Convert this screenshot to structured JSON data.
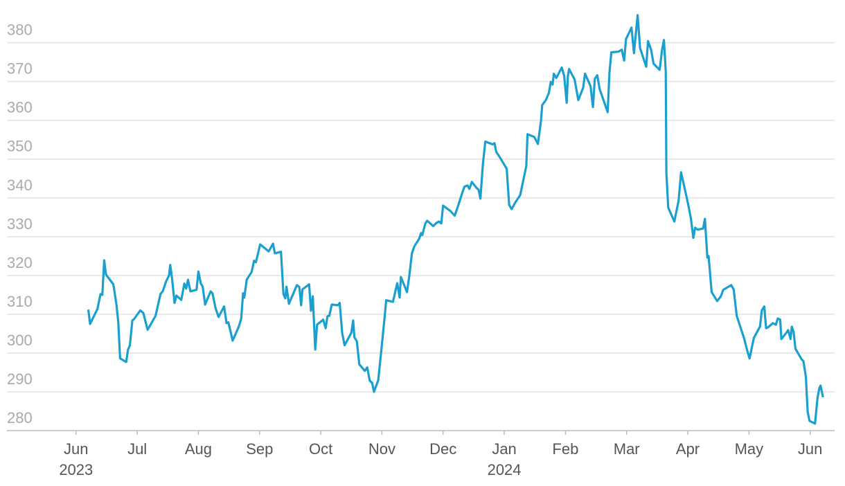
{
  "chart_data": {
    "type": "line",
    "x": [
      0.2,
      0.23,
      0.35,
      0.4,
      0.43,
      0.46,
      0.49,
      0.61,
      0.66,
      0.69,
      0.72,
      0.82,
      0.85,
      0.88,
      0.92,
      0.95,
      1.05,
      1.1,
      1.17,
      1.3,
      1.38,
      1.42,
      1.47,
      1.52,
      1.54,
      1.57,
      1.61,
      1.64,
      1.72,
      1.77,
      1.8,
      1.83,
      1.87,
      1.97,
      2.0,
      2.04,
      2.07,
      2.11,
      2.2,
      2.23,
      2.28,
      2.33,
      2.42,
      2.46,
      2.49,
      2.56,
      2.66,
      2.7,
      2.73,
      2.75,
      2.79,
      2.87,
      2.91,
      2.94,
      3.01,
      3.15,
      3.22,
      3.25,
      3.35,
      3.39,
      3.42,
      3.44,
      3.48,
      3.61,
      3.65,
      3.68,
      3.7,
      3.81,
      3.84,
      3.87,
      3.91,
      3.94,
      4.04,
      4.08,
      4.11,
      4.14,
      4.18,
      4.28,
      4.31,
      4.35,
      4.39,
      4.5,
      4.53,
      4.55,
      4.59,
      4.63,
      4.72,
      4.76,
      4.8,
      4.84,
      4.87,
      4.94,
      4.99,
      5.04,
      5.07,
      5.18,
      5.25,
      5.29,
      5.31,
      5.41,
      5.45,
      5.49,
      5.53,
      5.61,
      5.64,
      5.66,
      5.71,
      5.74,
      5.84,
      5.88,
      5.93,
      5.97,
      6.0,
      6.12,
      6.19,
      6.24,
      6.32,
      6.35,
      6.4,
      6.43,
      6.47,
      6.55,
      6.58,
      6.61,
      6.65,
      6.69,
      6.81,
      6.84,
      6.87,
      6.93,
      7.04,
      7.08,
      7.12,
      7.18,
      7.26,
      7.36,
      7.38,
      7.49,
      7.55,
      7.6,
      7.62,
      7.68,
      7.73,
      7.76,
      7.79,
      7.81,
      7.85,
      7.94,
      7.98,
      8.02,
      8.04,
      8.06,
      8.15,
      8.21,
      8.29,
      8.32,
      8.41,
      8.45,
      8.48,
      8.52,
      8.56,
      8.69,
      8.72,
      8.75,
      8.87,
      8.92,
      8.96,
      8.99,
      9.08,
      9.12,
      9.18,
      9.22,
      9.32,
      9.35,
      9.4,
      9.44,
      9.54,
      9.58,
      9.61,
      9.64,
      9.65,
      9.68,
      9.78,
      9.85,
      9.89,
      10.0,
      10.05,
      10.09,
      10.12,
      10.16,
      10.25,
      10.28,
      10.32,
      10.34,
      10.39,
      10.48,
      10.54,
      10.58,
      10.71,
      10.75,
      10.8,
      10.92,
      10.97,
      11.01,
      11.08,
      11.18,
      11.21,
      11.25,
      11.28,
      11.31,
      11.39,
      11.44,
      11.47,
      11.51,
      11.53,
      11.61,
      11.64,
      11.68,
      11.7,
      11.73,
      11.76,
      11.86,
      11.89,
      11.93,
      11.96,
      11.99,
      12.08,
      12.12,
      12.15,
      12.17,
      12.21
    ],
    "series": [
      {
        "color": "#1a9fcf",
        "values": [
          311.2,
          307.5,
          311.4,
          315.2,
          315.0,
          323.9,
          320.2,
          317.7,
          312.5,
          308.0,
          298.6,
          297.7,
          300.9,
          302.0,
          308.4,
          308.8,
          311.0,
          310.3,
          306.0,
          309.6,
          315.2,
          316.0,
          318.4,
          320.0,
          322.7,
          319.1,
          312.9,
          314.8,
          313.7,
          317.9,
          316.6,
          318.9,
          315.9,
          316.3,
          321.0,
          317.9,
          317.1,
          312.5,
          315.9,
          315.4,
          311.6,
          309.3,
          312.0,
          307.7,
          307.9,
          303.2,
          306.8,
          308.9,
          315.4,
          314.3,
          318.9,
          320.9,
          323.8,
          323.4,
          328.0,
          326.2,
          328.2,
          325.7,
          326.1,
          315.2,
          314.1,
          317.1,
          312.7,
          317.5,
          317.0,
          312.3,
          316.4,
          317.7,
          310.9,
          314.6,
          300.9,
          307.3,
          308.6,
          306.4,
          309.5,
          309.6,
          312.5,
          312.3,
          312.9,
          305.2,
          302.0,
          305.2,
          308.4,
          304.1,
          303.0,
          297.1,
          295.4,
          296.3,
          292.9,
          292.3,
          290.0,
          293.0,
          300.7,
          308.6,
          313.6,
          313.2,
          318.0,
          314.3,
          319.6,
          315.7,
          320.2,
          325.7,
          327.5,
          329.5,
          330.9,
          330.4,
          333.4,
          334.1,
          332.7,
          333.4,
          333.9,
          333.4,
          338.0,
          336.6,
          335.4,
          337.7,
          341.6,
          342.9,
          343.2,
          342.3,
          344.1,
          342.5,
          342.1,
          339.8,
          348.6,
          354.5,
          353.8,
          354.1,
          351.8,
          350.4,
          347.5,
          338.2,
          337.1,
          338.8,
          340.7,
          348.2,
          356.4,
          355.7,
          353.9,
          359.8,
          363.9,
          365.2,
          367.1,
          369.9,
          369.2,
          372.0,
          370.9,
          373.6,
          371.4,
          364.5,
          371.4,
          373.2,
          370.5,
          365.2,
          368.4,
          372.0,
          368.8,
          363.4,
          370.7,
          371.6,
          368.0,
          362.1,
          372.3,
          377.5,
          377.7,
          378.2,
          375.4,
          380.9,
          383.9,
          377.3,
          387.1,
          378.6,
          373.8,
          380.4,
          378.2,
          374.6,
          373.0,
          378.2,
          380.7,
          372.5,
          346.4,
          337.5,
          333.9,
          339.3,
          346.6,
          338.8,
          334.8,
          329.7,
          332.3,
          331.8,
          332.1,
          334.6,
          324.6,
          325.0,
          315.7,
          313.4,
          314.6,
          316.3,
          317.5,
          316.4,
          309.6,
          303.8,
          300.7,
          298.6,
          303.9,
          306.8,
          311.0,
          312.0,
          306.4,
          306.6,
          307.7,
          307.3,
          308.9,
          308.6,
          303.6,
          305.2,
          305.9,
          303.6,
          306.8,
          305.4,
          301.1,
          298.4,
          297.9,
          293.9,
          284.8,
          282.5,
          281.8,
          288.4,
          290.9,
          291.6,
          288.6
        ]
      }
    ],
    "xlim": [
      -1.13,
      12.4
    ],
    "xticks": [
      {
        "value": 0,
        "label": "Jun"
      },
      {
        "value": 1,
        "label": "Jul"
      },
      {
        "value": 2,
        "label": "Aug"
      },
      {
        "value": 3,
        "label": "Sep"
      },
      {
        "value": 4,
        "label": "Oct"
      },
      {
        "value": 5,
        "label": "Nov"
      },
      {
        "value": 6,
        "label": "Dec"
      },
      {
        "value": 7,
        "label": "Jan"
      },
      {
        "value": 8,
        "label": "Feb"
      },
      {
        "value": 9,
        "label": "Mar"
      },
      {
        "value": 10,
        "label": "Apr"
      },
      {
        "value": 11,
        "label": "May"
      },
      {
        "value": 12,
        "label": "Jun"
      }
    ],
    "x_year_labels": [
      {
        "value": 0,
        "label": "2023"
      },
      {
        "value": 7,
        "label": "2024"
      }
    ],
    "ylim": [
      280,
      391
    ],
    "yticks": [
      280,
      290,
      300,
      310,
      320,
      330,
      340,
      350,
      360,
      370,
      380
    ],
    "grid": true
  }
}
